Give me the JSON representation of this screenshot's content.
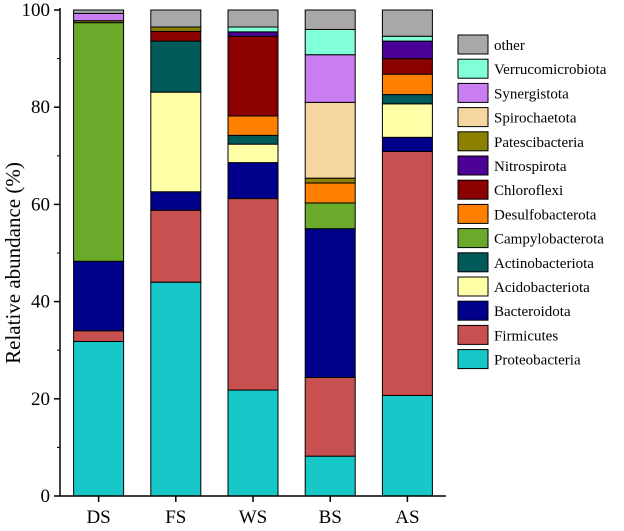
{
  "chart_data": {
    "type": "bar",
    "stacked": true,
    "ylabel": "Relative abundance (%)",
    "xlabel": "",
    "ylim": [
      0,
      100
    ],
    "yticks": [
      0,
      20,
      40,
      60,
      80,
      100
    ],
    "categories": [
      "DS",
      "FS",
      "WS",
      "BS",
      "AS"
    ],
    "legend_placement": "right",
    "series": [
      {
        "name": "Proteobacteria",
        "color": "#18c8c8",
        "values": [
          31.8,
          44.0,
          21.8,
          8.2,
          20.7
        ]
      },
      {
        "name": "Firmicutes",
        "color": "#c85050",
        "values": [
          2.2,
          14.8,
          39.4,
          16.2,
          50.2
        ]
      },
      {
        "name": "Bacteroidota",
        "color": "#00008b",
        "values": [
          14.3,
          3.8,
          7.4,
          30.6,
          2.9
        ]
      },
      {
        "name": "Acidobacteriota",
        "color": "#ffffa8",
        "values": [
          0.0,
          20.5,
          3.8,
          0.0,
          6.9
        ]
      },
      {
        "name": "Actinobacteriota",
        "color": "#005a5a",
        "values": [
          0.0,
          10.5,
          1.8,
          0.0,
          1.9
        ]
      },
      {
        "name": "Campylobacterota",
        "color": "#6aaa2a",
        "values": [
          49.1,
          0.0,
          0.0,
          5.3,
          0.0
        ]
      },
      {
        "name": "Desulfobacterota",
        "color": "#ff8000",
        "values": [
          0.0,
          0.0,
          4.0,
          4.1,
          4.2
        ]
      },
      {
        "name": "Chloroflexi",
        "color": "#8b0000",
        "values": [
          0.0,
          2.0,
          16.4,
          0.0,
          3.2
        ]
      },
      {
        "name": "Nitrospirota",
        "color": "#4b0096",
        "values": [
          0.0,
          0.0,
          0.9,
          0.0,
          3.6
        ]
      },
      {
        "name": "Patescibacteria",
        "color": "#8b8000",
        "values": [
          0.4,
          0.9,
          0.0,
          1.0,
          0.0
        ]
      },
      {
        "name": "Spirochaetota",
        "color": "#f5d5a0",
        "values": [
          0.0,
          0.0,
          0.0,
          15.6,
          0.0
        ]
      },
      {
        "name": "Synergistota",
        "color": "#c87ef0",
        "values": [
          1.5,
          0.0,
          0.0,
          9.8,
          0.0
        ]
      },
      {
        "name": "Verrucomicrobiota",
        "color": "#80ffd8",
        "values": [
          0.0,
          0.0,
          1.0,
          5.2,
          1.0
        ]
      },
      {
        "name": "other",
        "color": "#a8a8a8",
        "values": [
          0.7,
          3.5,
          3.5,
          4.0,
          5.4
        ]
      }
    ]
  }
}
